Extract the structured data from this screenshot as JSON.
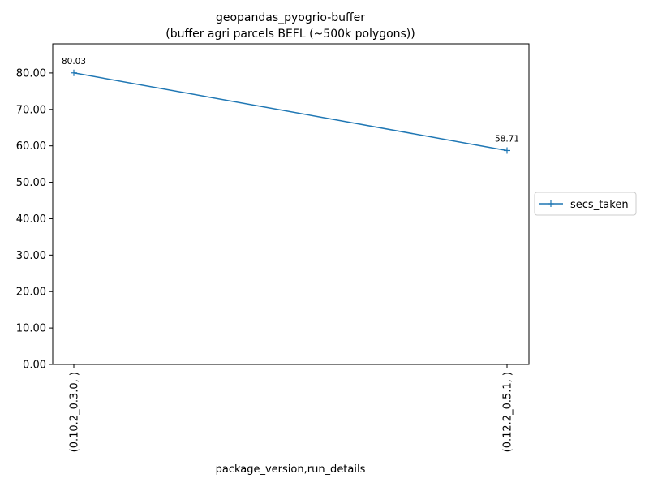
{
  "chart_data": {
    "type": "line",
    "title": "geopandas_pyogrio-buffer",
    "subtitle": "(buffer agri parcels BEFL (~500k polygons))",
    "xlabel": "package_version,run_details",
    "ylabel": "",
    "categories": [
      "(0.10.2_0.3.0, )",
      "(0.12.2_0.5.1, )"
    ],
    "series": [
      {
        "name": "secs_taken",
        "values": [
          80.03,
          58.71
        ],
        "labels": [
          "80.03",
          "58.71"
        ],
        "color": "#1f77b4",
        "marker": "plus"
      }
    ],
    "yticks": [
      "0.00",
      "10.00",
      "20.00",
      "30.00",
      "40.00",
      "50.00",
      "60.00",
      "70.00",
      "80.00"
    ],
    "ylim": [
      0,
      88
    ],
    "grid": false,
    "legend": "outside-right"
  }
}
